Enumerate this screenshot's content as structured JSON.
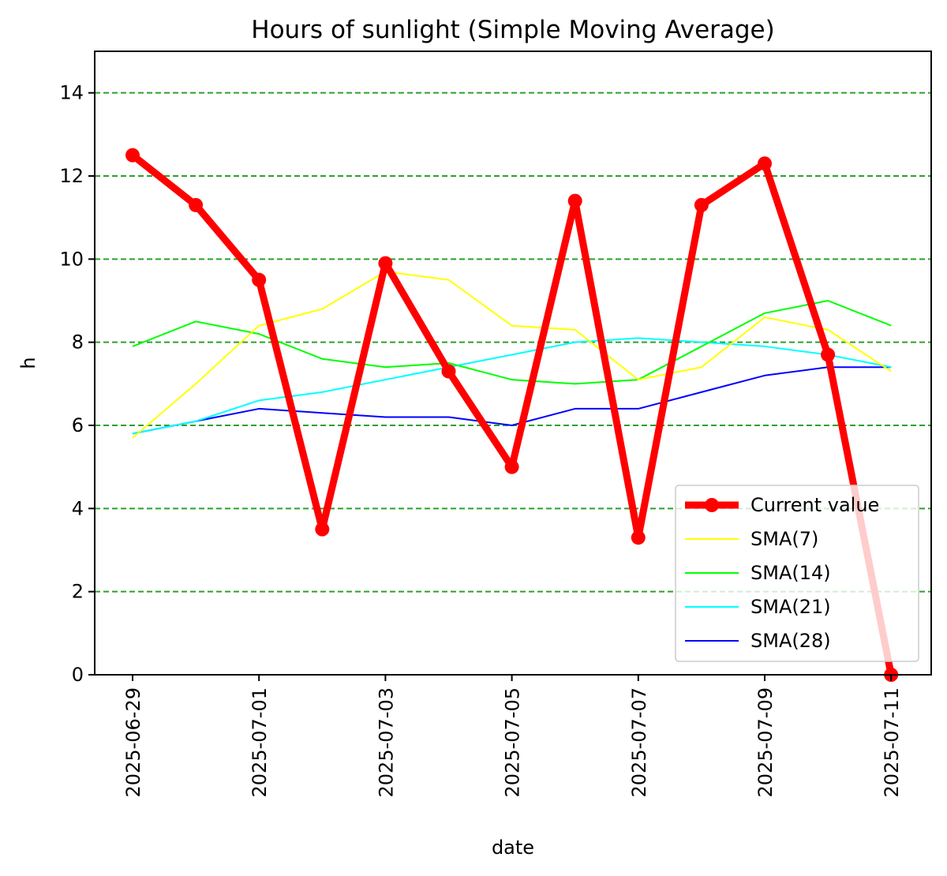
{
  "chart_data": {
    "type": "line",
    "title": "Hours of sunlight (Simple Moving Average)",
    "xlabel": "date",
    "ylabel": "h",
    "ylim": [
      0,
      15
    ],
    "yticks": [
      0,
      2,
      4,
      6,
      8,
      10,
      12,
      14
    ],
    "grid": "horizontal dashed",
    "legend_position": "lower-right",
    "x": [
      "2025-06-29",
      "2025-06-30",
      "2025-07-01",
      "2025-07-02",
      "2025-07-03",
      "2025-07-04",
      "2025-07-05",
      "2025-07-06",
      "2025-07-07",
      "2025-07-08",
      "2025-07-09",
      "2025-07-10",
      "2025-07-11"
    ],
    "xticks": [
      "2025-06-29",
      "2025-07-01",
      "2025-07-03",
      "2025-07-05",
      "2025-07-07",
      "2025-07-09",
      "2025-07-11"
    ],
    "grid_color": "#2ca02c",
    "series": [
      {
        "name": "Current value",
        "color": "#ff0000",
        "values": [
          12.5,
          11.3,
          9.5,
          3.5,
          9.9,
          7.3,
          5.0,
          11.4,
          3.3,
          11.3,
          12.3,
          7.7,
          0.0
        ]
      },
      {
        "name": "SMA(7)",
        "color": "#ffff00",
        "values": [
          5.7,
          7.0,
          8.4,
          8.8,
          9.7,
          9.5,
          8.4,
          8.3,
          7.1,
          7.4,
          8.6,
          8.3,
          7.3
        ]
      },
      {
        "name": "SMA(14)",
        "color": "#00ff00",
        "values": [
          7.9,
          8.5,
          8.2,
          7.6,
          7.4,
          7.5,
          7.1,
          7.0,
          7.1,
          7.9,
          8.7,
          9.0,
          8.4
        ]
      },
      {
        "name": "SMA(21)",
        "color": "#00ffff",
        "values": [
          5.8,
          6.1,
          6.6,
          6.8,
          7.1,
          7.4,
          7.7,
          8.0,
          8.1,
          8.0,
          7.9,
          7.7,
          7.4
        ]
      },
      {
        "name": "SMA(28)",
        "color": "#0000ff",
        "values": [
          5.8,
          6.1,
          6.4,
          6.3,
          6.2,
          6.2,
          6.0,
          6.4,
          6.4,
          6.8,
          7.2,
          7.4,
          7.4
        ]
      }
    ]
  }
}
